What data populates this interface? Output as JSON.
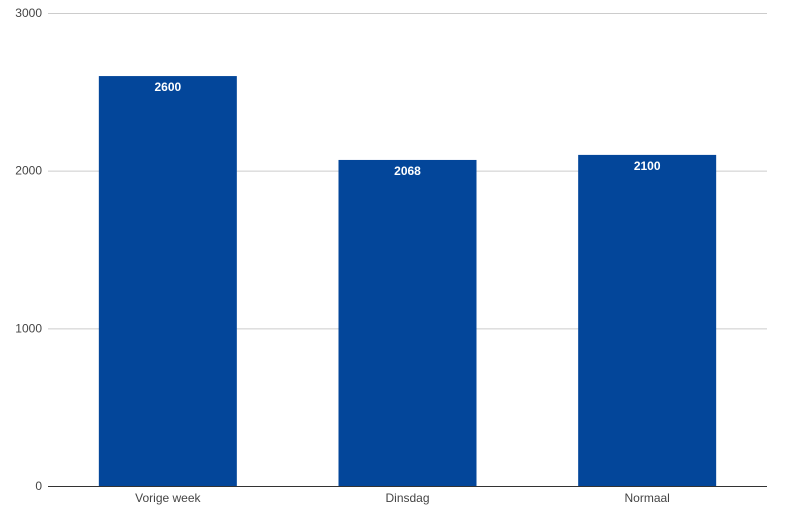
{
  "chart_data": {
    "type": "bar",
    "categories": [
      "Vorige week",
      "Dinsdag",
      "Normaal"
    ],
    "values": [
      2600,
      2068,
      2100
    ],
    "data_labels": [
      "2600",
      "2068",
      "2100"
    ],
    "title": "",
    "xlabel": "",
    "ylabel": "",
    "ylim": [
      0,
      3000
    ],
    "yticks": [
      "0",
      "1000",
      "2000",
      "3000"
    ],
    "grid": true,
    "legend": "none",
    "colors": {
      "bar": "#03469a"
    }
  }
}
